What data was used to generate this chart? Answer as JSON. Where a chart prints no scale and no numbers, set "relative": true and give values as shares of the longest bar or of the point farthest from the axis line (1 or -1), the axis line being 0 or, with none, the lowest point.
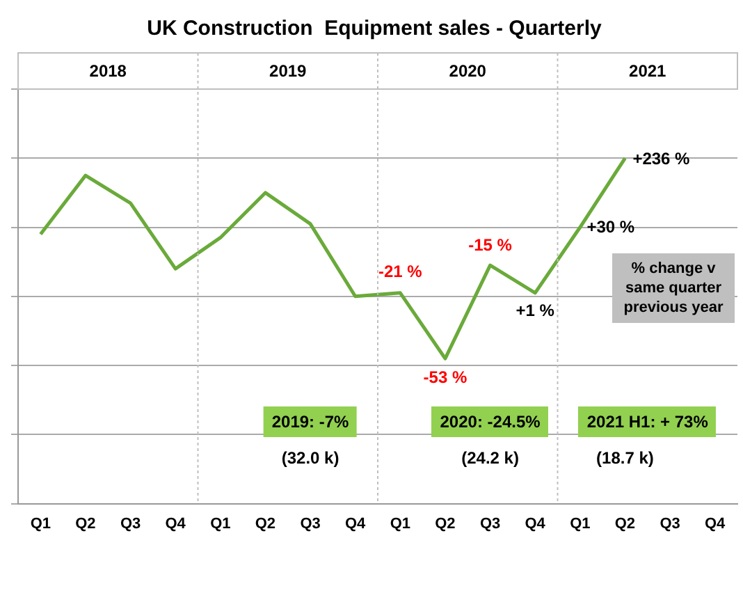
{
  "chart_data": {
    "type": "line",
    "title": "UK Construction  Equipment sales - Quarterly",
    "relative": true,
    "categories": [
      "Q1",
      "Q2",
      "Q3",
      "Q4",
      "Q1",
      "Q2",
      "Q3",
      "Q4",
      "Q1",
      "Q2",
      "Q3",
      "Q4",
      "Q1",
      "Q2",
      "Q3",
      "Q4"
    ],
    "series": [
      {
        "color": "#6aaa3a",
        "values": [
          0.78,
          0.95,
          0.87,
          0.68,
          0.77,
          0.9,
          0.81,
          0.6,
          0.61,
          0.42,
          0.69,
          0.61,
          0.8,
          1,
          null,
          null
        ]
      }
    ],
    "annotations": [
      "-21 %",
      "-53 %",
      "-15 %",
      "+1 %",
      "+30 %",
      "+236 %",
      "2018",
      "2019",
      "2020",
      "2021",
      "% change v same quarter previous year",
      "2019:  -7%",
      "(32.0 k)",
      "2020:  -24.5%",
      "(24.2 k)",
      "2021 H1:  + 73%",
      "(18.7 k)"
    ],
    "grid": "y",
    "legend": false,
    "marker": "none",
    "line_style": "solid"
  }
}
